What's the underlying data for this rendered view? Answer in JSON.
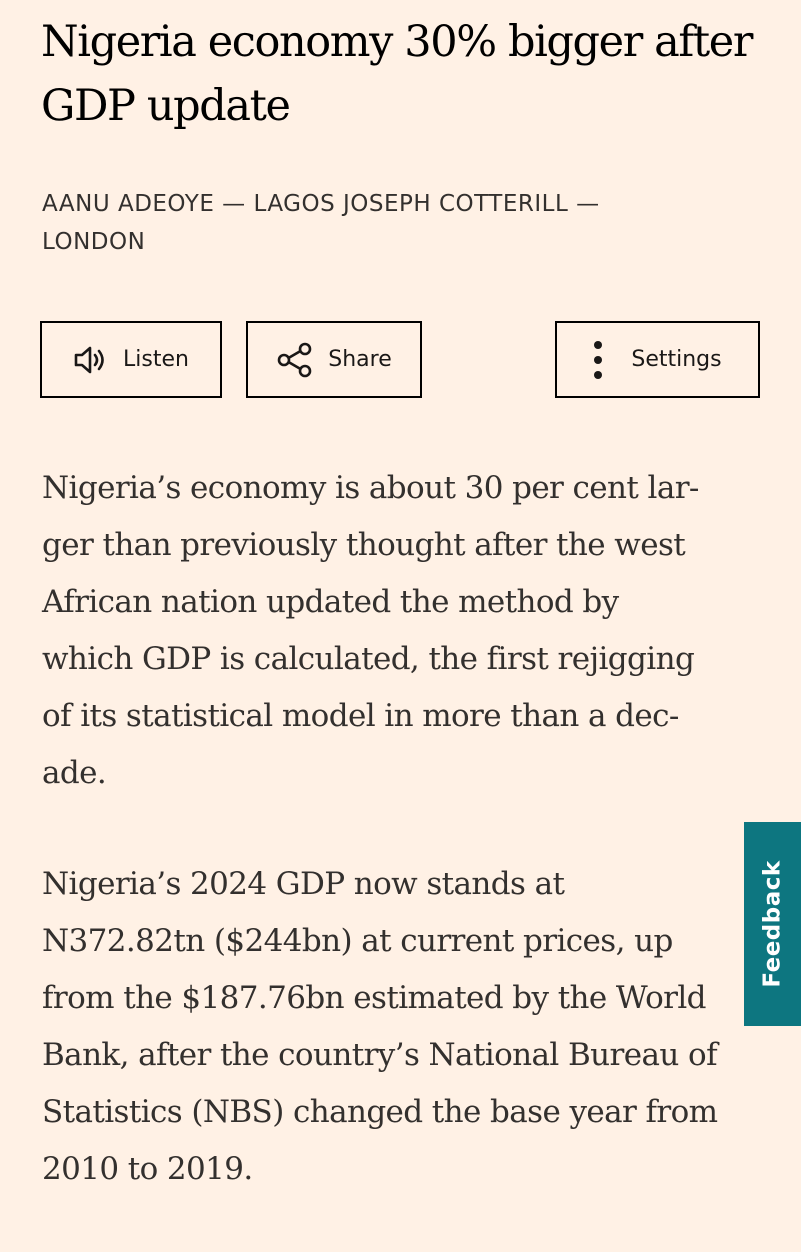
{
  "article": {
    "headline_lines": [
      "Nigeria economy 30% bigger after",
      "GDP update"
    ],
    "byline_lines": [
      "AANU ADEOYE — LAGOS JOSEPH COTTERILL —",
      "LONDON"
    ],
    "paragraphs": [
      "Nigeria’s economy is about 30 per cent lar-\nger than previously thought after the west\nAfrican nation updated the method by\nwhich GDP is calculated, the first rejigging\nof its statistical model in more than a dec-\nade.",
      "Nigeria’s 2024 GDP now stands at\nN372.82tn ($244bn) at current prices, up\nfrom the $187.76bn estimated by the World\nBank, after the country’s National Bureau of\nStatistics (NBS) changed the base year from\n2010 to 2019."
    ]
  },
  "toolbar": {
    "listen_label": "Listen",
    "listen_icon": "speaker-icon",
    "share_label": "Share",
    "share_icon": "share-icon",
    "settings_label": "Settings",
    "settings_icon": "kebab-menu-icon"
  },
  "feedback": {
    "label": "Feedback"
  },
  "colors": {
    "background": "#FFF1E5",
    "text": "#33302E",
    "headline": "#000000",
    "feedback_tab": "#0D7680"
  }
}
